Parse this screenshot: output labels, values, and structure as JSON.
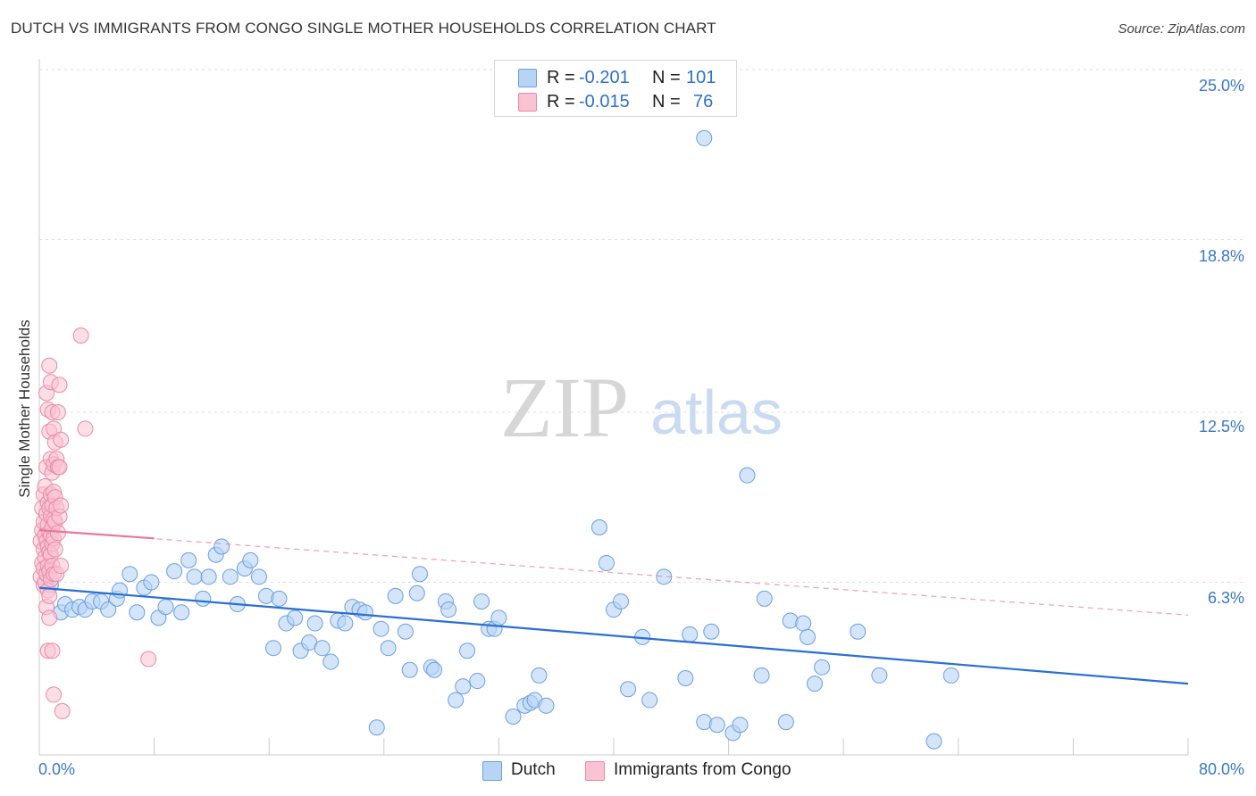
{
  "header": {
    "title": "DUTCH VS IMMIGRANTS FROM CONGO SINGLE MOTHER HOUSEHOLDS CORRELATION CHART",
    "source": "Source: ZipAtlas.com"
  },
  "watermark": {
    "zip": "ZIP",
    "atlas": "atlas"
  },
  "stats": {
    "r_label": "R =",
    "n_label": "N =",
    "rows": [
      {
        "r": "-0.201",
        "n": "101"
      },
      {
        "r": "-0.015",
        "n": "76"
      }
    ]
  },
  "axes": {
    "ylabel": "Single Mother Households",
    "yticks": [
      "25.0%",
      "18.8%",
      "12.5%",
      "6.3%"
    ],
    "x_left": "0.0%",
    "x_right": "80.0%"
  },
  "colors": {
    "dutch_fill": "#b8d4f5",
    "dutch_stroke": "#6a9fe0",
    "dutch_line": "#2b6fd0",
    "congo_fill": "#f9c3d3",
    "congo_stroke": "#ea8aa9",
    "congo_line": "#e8769b",
    "tick_label": "#3a78c8",
    "grid": "#dddddd"
  },
  "chart_data": {
    "type": "scatter",
    "title": "DUTCH VS IMMIGRANTS FROM CONGO SINGLE MOTHER HOUSEHOLDS CORRELATION CHART",
    "xlabel": "",
    "ylabel": "Single Mother Households",
    "xlim": [
      0,
      80
    ],
    "ylim": [
      0,
      25
    ],
    "y_gridlines": [
      6.3,
      12.5,
      18.8,
      25.0
    ],
    "grid": true,
    "legend": [
      "Dutch",
      "Immigrants from Congo"
    ],
    "series": [
      {
        "name": "Dutch",
        "r": -0.201,
        "n": 101,
        "trend": {
          "x": [
            0,
            80
          ],
          "y": [
            6.1,
            2.6
          ]
        },
        "points": [
          [
            0.8,
            6.2
          ],
          [
            1.5,
            5.2
          ],
          [
            1.8,
            5.5
          ],
          [
            2.3,
            5.3
          ],
          [
            2.8,
            5.4
          ],
          [
            3.2,
            5.3
          ],
          [
            3.7,
            5.6
          ],
          [
            4.3,
            5.6
          ],
          [
            4.8,
            5.3
          ],
          [
            5.4,
            5.7
          ],
          [
            5.6,
            6.0
          ],
          [
            6.3,
            6.6
          ],
          [
            6.8,
            5.2
          ],
          [
            7.3,
            6.1
          ],
          [
            7.8,
            6.3
          ],
          [
            8.3,
            5.0
          ],
          [
            8.8,
            5.4
          ],
          [
            9.4,
            6.7
          ],
          [
            9.9,
            5.2
          ],
          [
            10.4,
            7.1
          ],
          [
            10.8,
            6.5
          ],
          [
            11.4,
            5.7
          ],
          [
            11.8,
            6.5
          ],
          [
            12.3,
            7.3
          ],
          [
            12.7,
            7.6
          ],
          [
            13.3,
            6.5
          ],
          [
            13.8,
            5.5
          ],
          [
            14.3,
            6.8
          ],
          [
            14.7,
            7.1
          ],
          [
            15.3,
            6.5
          ],
          [
            15.8,
            5.8
          ],
          [
            16.3,
            3.9
          ],
          [
            16.7,
            5.7
          ],
          [
            17.2,
            4.8
          ],
          [
            17.8,
            5.0
          ],
          [
            18.2,
            3.8
          ],
          [
            18.8,
            4.1
          ],
          [
            19.2,
            4.8
          ],
          [
            19.7,
            3.9
          ],
          [
            20.3,
            3.4
          ],
          [
            20.8,
            4.9
          ],
          [
            21.3,
            4.8
          ],
          [
            21.8,
            5.4
          ],
          [
            22.3,
            5.3
          ],
          [
            22.7,
            5.2
          ],
          [
            23.5,
            1.0
          ],
          [
            23.8,
            4.6
          ],
          [
            24.3,
            3.9
          ],
          [
            24.8,
            5.8
          ],
          [
            25.5,
            4.5
          ],
          [
            25.8,
            3.1
          ],
          [
            26.3,
            5.9
          ],
          [
            26.5,
            6.6
          ],
          [
            27.3,
            3.2
          ],
          [
            27.5,
            3.1
          ],
          [
            28.3,
            5.6
          ],
          [
            28.5,
            5.3
          ],
          [
            29.0,
            2.0
          ],
          [
            29.5,
            2.5
          ],
          [
            29.8,
            3.8
          ],
          [
            30.5,
            2.7
          ],
          [
            30.8,
            5.6
          ],
          [
            31.3,
            4.6
          ],
          [
            31.7,
            4.6
          ],
          [
            32.0,
            5.0
          ],
          [
            33.0,
            1.4
          ],
          [
            33.8,
            1.8
          ],
          [
            34.2,
            1.9
          ],
          [
            34.5,
            2.0
          ],
          [
            34.8,
            2.9
          ],
          [
            35.3,
            1.8
          ],
          [
            36.3,
            23.6
          ],
          [
            39.0,
            8.3
          ],
          [
            39.5,
            7.0
          ],
          [
            40.0,
            5.3
          ],
          [
            40.5,
            5.6
          ],
          [
            41.0,
            2.4
          ],
          [
            42.0,
            4.3
          ],
          [
            42.5,
            2.0
          ],
          [
            43.5,
            6.5
          ],
          [
            45.0,
            2.8
          ],
          [
            45.3,
            4.4
          ],
          [
            46.3,
            22.5
          ],
          [
            46.3,
            1.2
          ],
          [
            46.8,
            4.5
          ],
          [
            47.2,
            1.1
          ],
          [
            48.3,
            0.8
          ],
          [
            48.8,
            1.1
          ],
          [
            49.3,
            10.2
          ],
          [
            50.3,
            2.9
          ],
          [
            50.5,
            5.7
          ],
          [
            52.0,
            1.2
          ],
          [
            52.3,
            4.9
          ],
          [
            53.2,
            4.8
          ],
          [
            53.5,
            4.3
          ],
          [
            54.0,
            2.6
          ],
          [
            54.5,
            3.2
          ],
          [
            57.0,
            4.5
          ],
          [
            58.5,
            2.9
          ],
          [
            62.3,
            0.5
          ],
          [
            63.5,
            2.9
          ]
        ]
      },
      {
        "name": "Immigrants from Congo",
        "r": -0.015,
        "n": 76,
        "trend_solid": {
          "x": [
            0,
            8
          ],
          "y": [
            8.2,
            7.9
          ]
        },
        "trend_dashed": {
          "x": [
            0,
            80
          ],
          "y": [
            8.2,
            5.1
          ]
        },
        "points": [
          [
            0.1,
            6.5
          ],
          [
            0.1,
            7.8
          ],
          [
            0.2,
            9.0
          ],
          [
            0.2,
            8.2
          ],
          [
            0.2,
            7.0
          ],
          [
            0.3,
            6.2
          ],
          [
            0.3,
            9.5
          ],
          [
            0.3,
            8.5
          ],
          [
            0.3,
            7.5
          ],
          [
            0.3,
            6.8
          ],
          [
            0.4,
            8.0
          ],
          [
            0.4,
            9.8
          ],
          [
            0.4,
            7.2
          ],
          [
            0.4,
            6.3
          ],
          [
            0.5,
            13.2
          ],
          [
            0.5,
            10.5
          ],
          [
            0.5,
            8.8
          ],
          [
            0.5,
            7.8
          ],
          [
            0.5,
            6.6
          ],
          [
            0.5,
            5.4
          ],
          [
            0.6,
            12.6
          ],
          [
            0.6,
            9.2
          ],
          [
            0.6,
            8.4
          ],
          [
            0.6,
            7.6
          ],
          [
            0.6,
            6.9
          ],
          [
            0.6,
            6.0
          ],
          [
            0.6,
            3.8
          ],
          [
            0.7,
            14.2
          ],
          [
            0.7,
            11.8
          ],
          [
            0.7,
            9.0
          ],
          [
            0.7,
            8.1
          ],
          [
            0.7,
            7.4
          ],
          [
            0.7,
            6.7
          ],
          [
            0.7,
            5.8
          ],
          [
            0.7,
            5.0
          ],
          [
            0.8,
            13.6
          ],
          [
            0.8,
            10.8
          ],
          [
            0.8,
            9.5
          ],
          [
            0.8,
            8.7
          ],
          [
            0.8,
            8.0
          ],
          [
            0.8,
            7.3
          ],
          [
            0.8,
            6.4
          ],
          [
            0.9,
            12.5
          ],
          [
            0.9,
            10.3
          ],
          [
            0.9,
            9.1
          ],
          [
            0.9,
            8.3
          ],
          [
            0.9,
            7.7
          ],
          [
            0.9,
            6.9
          ],
          [
            0.9,
            3.8
          ],
          [
            1.0,
            11.9
          ],
          [
            1.0,
            10.6
          ],
          [
            1.0,
            9.6
          ],
          [
            1.0,
            8.6
          ],
          [
            1.0,
            7.9
          ],
          [
            1.0,
            6.6
          ],
          [
            1.0,
            2.2
          ],
          [
            1.1,
            11.4
          ],
          [
            1.1,
            9.4
          ],
          [
            1.1,
            8.5
          ],
          [
            1.1,
            7.5
          ],
          [
            1.2,
            10.8
          ],
          [
            1.2,
            9.0
          ],
          [
            1.2,
            6.6
          ],
          [
            1.3,
            12.5
          ],
          [
            1.3,
            10.5
          ],
          [
            1.3,
            8.1
          ],
          [
            1.4,
            13.5
          ],
          [
            1.4,
            10.5
          ],
          [
            1.4,
            8.7
          ],
          [
            1.5,
            11.5
          ],
          [
            1.5,
            9.1
          ],
          [
            1.5,
            6.9
          ],
          [
            1.6,
            1.6
          ],
          [
            2.9,
            15.3
          ],
          [
            3.2,
            11.9
          ],
          [
            7.6,
            3.5
          ]
        ]
      }
    ]
  },
  "legend": {
    "dutch": "Dutch",
    "congo": "Immigrants from Congo"
  }
}
